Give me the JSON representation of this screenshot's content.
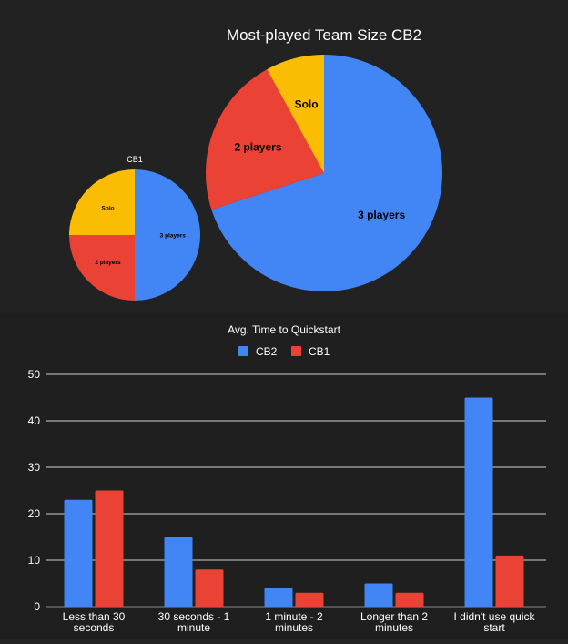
{
  "colors": {
    "background": "#222222",
    "text": "#ffffff",
    "blue": "#4285f4",
    "red": "#ea4335",
    "yellow": "#fbbc04",
    "grid": "#d9d9d9"
  },
  "chart_data": [
    {
      "type": "pie",
      "title": "CB1",
      "slices": [
        {
          "label": "3 players",
          "value": 50,
          "color": "#4285f4"
        },
        {
          "label": "2 players",
          "value": 25,
          "color": "#ea4335"
        },
        {
          "label": "Solo",
          "value": 25,
          "color": "#fbbc04"
        }
      ]
    },
    {
      "type": "pie",
      "title": "Most-played Team Size CB2",
      "slices": [
        {
          "label": "3 players",
          "value": 70,
          "color": "#4285f4"
        },
        {
          "label": "2 players",
          "value": 22,
          "color": "#ea4335"
        },
        {
          "label": "Solo",
          "value": 8,
          "color": "#fbbc04"
        }
      ]
    },
    {
      "type": "bar",
      "title": "Avg. Time to Quickstart",
      "categories": [
        [
          "Less than 30",
          "seconds"
        ],
        [
          "30 seconds - 1",
          "minute"
        ],
        [
          "1 minute - 2",
          "minutes"
        ],
        [
          "Longer than 2",
          "minutes"
        ],
        [
          "I didn't use quick",
          "start"
        ]
      ],
      "series": [
        {
          "name": "CB2",
          "color": "#4285f4",
          "values": [
            23,
            15,
            4,
            5,
            45
          ]
        },
        {
          "name": "CB1",
          "color": "#ea4335",
          "values": [
            25,
            8,
            3,
            3,
            11
          ]
        }
      ],
      "ylim": [
        0,
        50
      ],
      "yticks": [
        0,
        10,
        20,
        30,
        40,
        50
      ],
      "grid": true,
      "legend": "top-center"
    }
  ]
}
